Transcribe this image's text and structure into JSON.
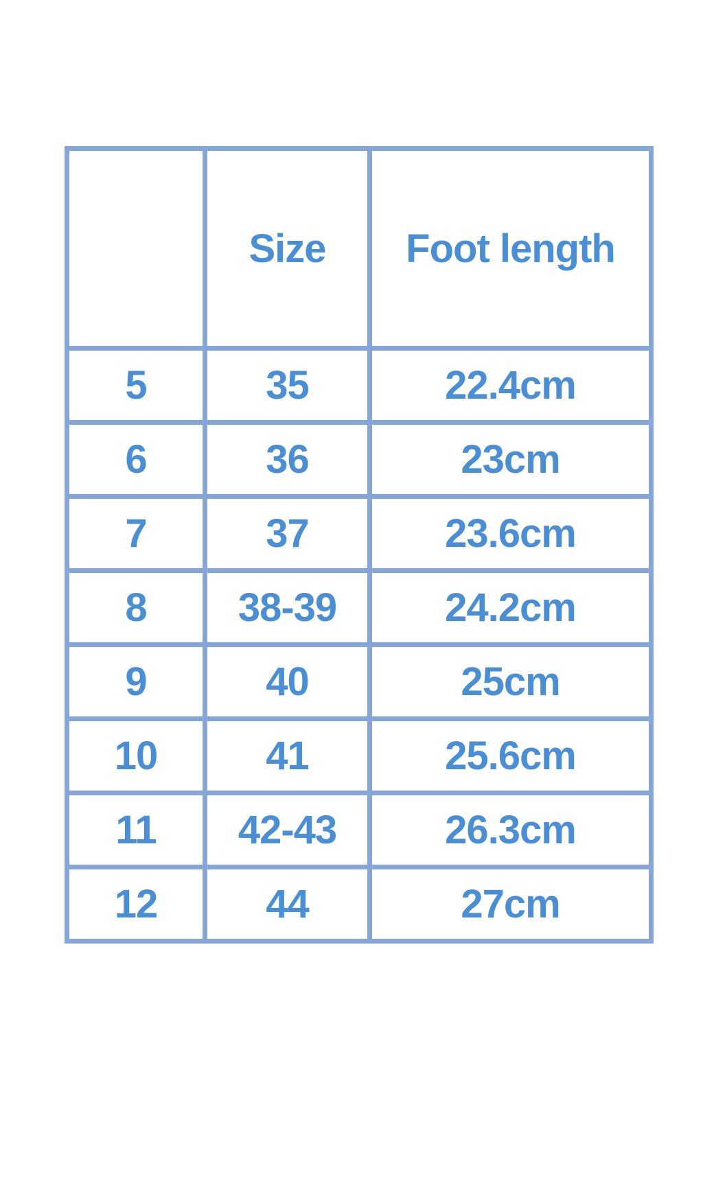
{
  "table": {
    "headers": [
      "",
      "Size",
      "Foot length"
    ],
    "rows": [
      [
        "5",
        "35",
        "22.4cm"
      ],
      [
        "6",
        "36",
        "23cm"
      ],
      [
        "7",
        "37",
        "23.6cm"
      ],
      [
        "8",
        "38-39",
        "24.2cm"
      ],
      [
        "9",
        "40",
        "25cm"
      ],
      [
        "10",
        "41",
        "25.6cm"
      ],
      [
        "11",
        "42-43",
        "26.3cm"
      ],
      [
        "12",
        "44",
        "27cm"
      ]
    ]
  },
  "colors": {
    "border": "#86a6d9",
    "text": "#4a8fd6"
  }
}
